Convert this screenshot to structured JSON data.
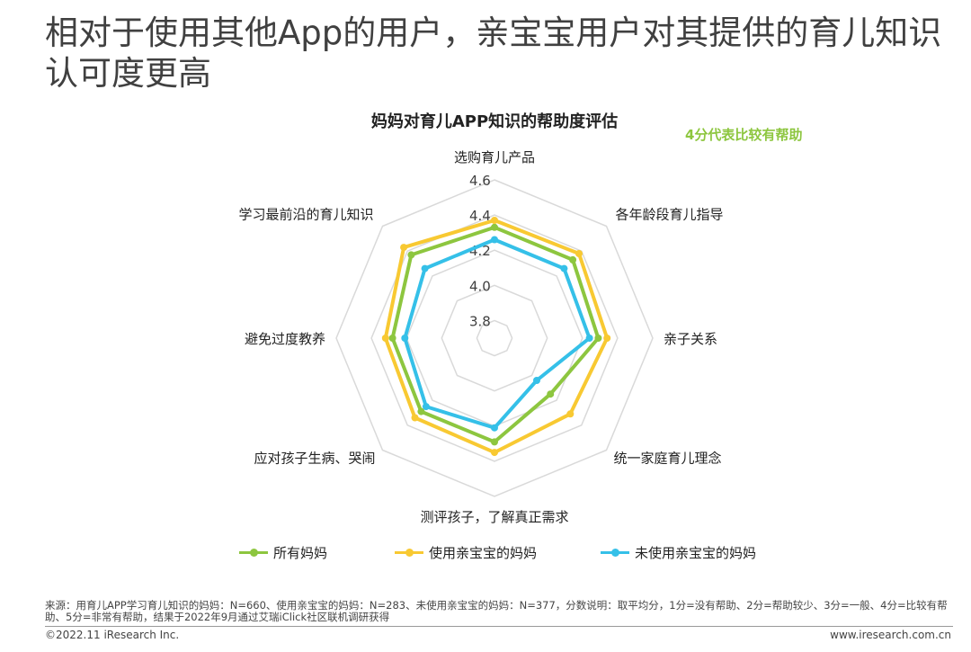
{
  "header": {
    "title": "相对于使用其他App的用户，亲宝宝用户对其提供的育儿知识认可度更高"
  },
  "chart_data": {
    "type": "radar",
    "title": "妈妈对育儿APP知识的帮助度评估",
    "note": "4分代表比较有帮助",
    "categories": [
      "选购育儿产品",
      "各年龄段育儿指导",
      "亲子关系",
      "统一家庭育儿理念",
      "测评孩子，了解真正需求",
      "应对孩子生病、哭闹",
      "避免过度教养",
      "学习最前沿的育儿知识"
    ],
    "scale_ticks": [
      "4.6",
      "4.4",
      "4.2",
      "4.0",
      "3.8"
    ],
    "rmin": 3.7,
    "rmax": 4.6,
    "series": [
      {
        "name": "所有妈妈",
        "color": "#8dc63f",
        "values": [
          4.33,
          4.33,
          4.29,
          4.15,
          4.29,
          4.29,
          4.28,
          4.37
        ]
      },
      {
        "name": "使用亲宝宝的妈妈",
        "color": "#f8c932",
        "values": [
          4.37,
          4.38,
          4.34,
          4.31,
          4.35,
          4.34,
          4.32,
          4.43
        ]
      },
      {
        "name": "未使用亲宝宝的妈妈",
        "color": "#35c0e8",
        "values": [
          4.26,
          4.26,
          4.24,
          4.04,
          4.21,
          4.25,
          4.21,
          4.26
        ]
      }
    ]
  },
  "legend": {
    "items": [
      "所有妈妈",
      "使用亲宝宝的妈妈",
      "未使用亲宝宝的妈妈"
    ]
  },
  "footer": {
    "source": "来源：用育儿APP学习育儿知识的妈妈：N=660、使用亲宝宝的妈妈：N=283、未使用亲宝宝的妈妈：N=377，分数说明：取平均分，1分=没有帮助、2分=帮助较少、3分=一般、4分=比较有帮助、5分=非常有帮助，结果于2022年9月通过艾瑞iClick社区联机调研获得",
    "copyright": "©2022.11 iResearch Inc.",
    "website": "www.iresearch.com.cn"
  }
}
